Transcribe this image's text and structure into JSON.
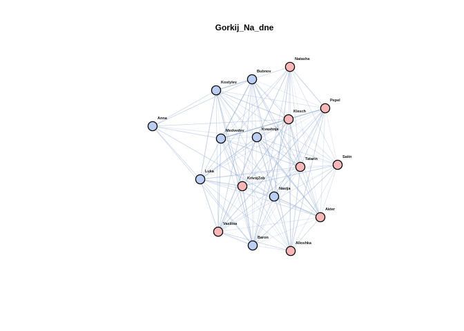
{
  "title": "Gorkij_Na_dne",
  "colors": {
    "group_blue": "#b9cef0",
    "group_pink": "#f7b7b8",
    "edge": "#8fa6cf",
    "node_stroke": "#000000"
  },
  "nodes": [
    {
      "id": "Natasha",
      "label": "Natasha",
      "group": "pink"
    },
    {
      "id": "Bubnov",
      "label": "Bubnov",
      "group": "blue"
    },
    {
      "id": "Kostylev",
      "label": "Kostylev",
      "group": "blue"
    },
    {
      "id": "Pepel",
      "label": "Pepel",
      "group": "pink"
    },
    {
      "id": "Klesch",
      "label": "Klesch",
      "group": "pink"
    },
    {
      "id": "Anna",
      "label": "Anna",
      "group": "blue"
    },
    {
      "id": "Medvedev",
      "label": "Medvedev",
      "group": "blue"
    },
    {
      "id": "Kvashnja",
      "label": "Kvashnja",
      "group": "blue"
    },
    {
      "id": "Tatarin",
      "label": "Tatarin",
      "group": "pink"
    },
    {
      "id": "Satin",
      "label": "Satin",
      "group": "pink"
    },
    {
      "id": "Luka",
      "label": "Luka",
      "group": "blue"
    },
    {
      "id": "KrivojZob",
      "label": "KrivojZob",
      "group": "pink"
    },
    {
      "id": "Nastja",
      "label": "Nastja",
      "group": "blue"
    },
    {
      "id": "Akter",
      "label": "Akter",
      "group": "pink"
    },
    {
      "id": "Vasilisa",
      "label": "Vasilisa",
      "group": "pink"
    },
    {
      "id": "Baron",
      "label": "Baron",
      "group": "blue"
    },
    {
      "id": "Alioshka",
      "label": "Alioshka",
      "group": "pink"
    }
  ],
  "edges": [
    [
      "Natasha",
      "Bubnov"
    ],
    [
      "Natasha",
      "Kostylev"
    ],
    [
      "Natasha",
      "Pepel"
    ],
    [
      "Natasha",
      "Klesch"
    ],
    [
      "Natasha",
      "Medvedev"
    ],
    [
      "Natasha",
      "Kvashnja"
    ],
    [
      "Natasha",
      "Tatarin"
    ],
    [
      "Natasha",
      "Satin"
    ],
    [
      "Natasha",
      "Nastja"
    ],
    [
      "Natasha",
      "Baron"
    ],
    [
      "Natasha",
      "Alioshka"
    ],
    [
      "Natasha",
      "Akter"
    ],
    [
      "Natasha",
      "Luka"
    ],
    [
      "Bubnov",
      "Kostylev"
    ],
    [
      "Bubnov",
      "Pepel"
    ],
    [
      "Bubnov",
      "Klesch"
    ],
    [
      "Bubnov",
      "Medvedev"
    ],
    [
      "Bubnov",
      "Kvashnja"
    ],
    [
      "Bubnov",
      "Tatarin"
    ],
    [
      "Bubnov",
      "Satin"
    ],
    [
      "Bubnov",
      "Luka"
    ],
    [
      "Bubnov",
      "KrivojZob"
    ],
    [
      "Bubnov",
      "Nastja"
    ],
    [
      "Bubnov",
      "Akter"
    ],
    [
      "Bubnov",
      "Vasilisa"
    ],
    [
      "Bubnov",
      "Baron"
    ],
    [
      "Bubnov",
      "Alioshka"
    ],
    [
      "Bubnov",
      "Anna"
    ],
    [
      "Kostylev",
      "Pepel"
    ],
    [
      "Kostylev",
      "Klesch"
    ],
    [
      "Kostylev",
      "Medvedev"
    ],
    [
      "Kostylev",
      "Kvashnja"
    ],
    [
      "Kostylev",
      "Luka"
    ],
    [
      "Kostylev",
      "Nastja"
    ],
    [
      "Kostylev",
      "Vasilisa"
    ],
    [
      "Kostylev",
      "Baron"
    ],
    [
      "Kostylev",
      "Anna"
    ],
    [
      "Kostylev",
      "Satin"
    ],
    [
      "Kostylev",
      "Tatarin"
    ],
    [
      "Kostylev",
      "KrivojZob"
    ],
    [
      "Kostylev",
      "Akter"
    ],
    [
      "Kostylev",
      "Alioshka"
    ],
    [
      "Pepel",
      "Klesch"
    ],
    [
      "Pepel",
      "Medvedev"
    ],
    [
      "Pepel",
      "Kvashnja"
    ],
    [
      "Pepel",
      "Tatarin"
    ],
    [
      "Pepel",
      "Satin"
    ],
    [
      "Pepel",
      "Luka"
    ],
    [
      "Pepel",
      "Nastja"
    ],
    [
      "Pepel",
      "Akter"
    ],
    [
      "Pepel",
      "Baron"
    ],
    [
      "Pepel",
      "Alioshka"
    ],
    [
      "Pepel",
      "KrivojZob"
    ],
    [
      "Pepel",
      "Vasilisa"
    ],
    [
      "Klesch",
      "Medvedev"
    ],
    [
      "Klesch",
      "Kvashnja"
    ],
    [
      "Klesch",
      "Tatarin"
    ],
    [
      "Klesch",
      "Satin"
    ],
    [
      "Klesch",
      "Luka"
    ],
    [
      "Klesch",
      "KrivojZob"
    ],
    [
      "Klesch",
      "Nastja"
    ],
    [
      "Klesch",
      "Akter"
    ],
    [
      "Klesch",
      "Baron"
    ],
    [
      "Klesch",
      "Alioshka"
    ],
    [
      "Klesch",
      "Anna"
    ],
    [
      "Klesch",
      "Vasilisa"
    ],
    [
      "Anna",
      "Medvedev"
    ],
    [
      "Anna",
      "Luka"
    ],
    [
      "Anna",
      "Kvashnja"
    ],
    [
      "Anna",
      "Nastja"
    ],
    [
      "Anna",
      "Baron"
    ],
    [
      "Medvedev",
      "Kvashnja"
    ],
    [
      "Medvedev",
      "Tatarin"
    ],
    [
      "Medvedev",
      "Satin"
    ],
    [
      "Medvedev",
      "Luka"
    ],
    [
      "Medvedev",
      "KrivojZob"
    ],
    [
      "Medvedev",
      "Nastja"
    ],
    [
      "Medvedev",
      "Akter"
    ],
    [
      "Medvedev",
      "Vasilisa"
    ],
    [
      "Medvedev",
      "Baron"
    ],
    [
      "Medvedev",
      "Alioshka"
    ],
    [
      "Kvashnja",
      "Tatarin"
    ],
    [
      "Kvashnja",
      "Satin"
    ],
    [
      "Kvashnja",
      "Luka"
    ],
    [
      "Kvashnja",
      "KrivojZob"
    ],
    [
      "Kvashnja",
      "Nastja"
    ],
    [
      "Kvashnja",
      "Akter"
    ],
    [
      "Kvashnja",
      "Baron"
    ],
    [
      "Kvashnja",
      "Alioshka"
    ],
    [
      "Kvashnja",
      "Vasilisa"
    ],
    [
      "Tatarin",
      "Satin"
    ],
    [
      "Tatarin",
      "Luka"
    ],
    [
      "Tatarin",
      "KrivojZob"
    ],
    [
      "Tatarin",
      "Nastja"
    ],
    [
      "Tatarin",
      "Akter"
    ],
    [
      "Tatarin",
      "Baron"
    ],
    [
      "Tatarin",
      "Alioshka"
    ],
    [
      "Tatarin",
      "Vasilisa"
    ],
    [
      "Satin",
      "Luka"
    ],
    [
      "Satin",
      "KrivojZob"
    ],
    [
      "Satin",
      "Nastja"
    ],
    [
      "Satin",
      "Akter"
    ],
    [
      "Satin",
      "Baron"
    ],
    [
      "Satin",
      "Alioshka"
    ],
    [
      "Satin",
      "Vasilisa"
    ],
    [
      "Luka",
      "KrivojZob"
    ],
    [
      "Luka",
      "Nastja"
    ],
    [
      "Luka",
      "Akter"
    ],
    [
      "Luka",
      "Vasilisa"
    ],
    [
      "Luka",
      "Baron"
    ],
    [
      "Luka",
      "Alioshka"
    ],
    [
      "KrivojZob",
      "Nastja"
    ],
    [
      "KrivojZob",
      "Akter"
    ],
    [
      "KrivojZob",
      "Baron"
    ],
    [
      "KrivojZob",
      "Alioshka"
    ],
    [
      "KrivojZob",
      "Vasilisa"
    ],
    [
      "Nastja",
      "Akter"
    ],
    [
      "Nastja",
      "Vasilisa"
    ],
    [
      "Nastja",
      "Baron"
    ],
    [
      "Nastja",
      "Alioshka"
    ],
    [
      "Akter",
      "Baron"
    ],
    [
      "Akter",
      "Alioshka"
    ],
    [
      "Akter",
      "Vasilisa"
    ],
    [
      "Vasilisa",
      "Baron"
    ],
    [
      "Vasilisa",
      "Alioshka"
    ],
    [
      "Baron",
      "Alioshka"
    ]
  ]
}
